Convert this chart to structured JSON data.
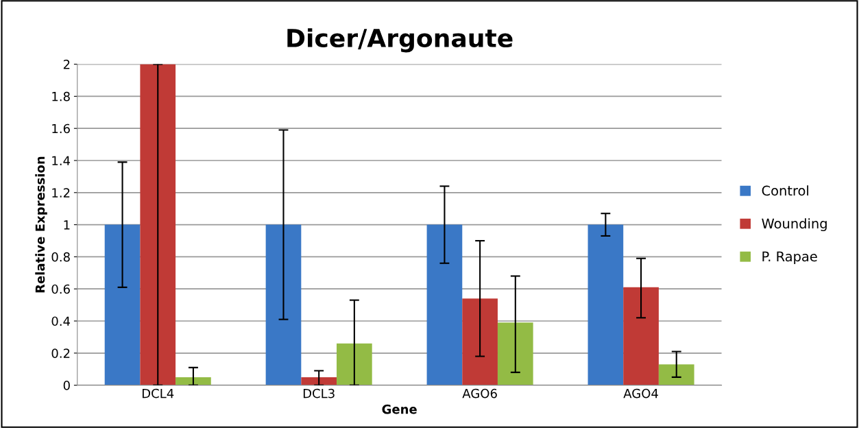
{
  "chart_data": {
    "type": "bar",
    "title": "Dicer/Argonaute",
    "xlabel": "Gene",
    "ylabel": "Relative Expression",
    "categories": [
      "DCL4",
      "DCL3",
      "AGO6",
      "AGO4"
    ],
    "series": [
      {
        "name": "Control",
        "color": "#3a78c6",
        "values": [
          1,
          1,
          1,
          1
        ],
        "errors": [
          [
            0.61,
            1.39
          ],
          [
            0.41,
            1.59
          ],
          [
            0.76,
            1.24
          ],
          [
            0.93,
            1.07
          ]
        ]
      },
      {
        "name": "Wounding",
        "color": "#c03a36",
        "values": [
          2,
          0.05,
          0.54,
          0.61
        ],
        "errors": [
          [
            0,
            2
          ],
          [
            0,
            0.09
          ],
          [
            0.18,
            0.9
          ],
          [
            0.42,
            0.79
          ]
        ]
      },
      {
        "name": "P. Rapae",
        "color": "#93bb45",
        "values": [
          0.05,
          0.26,
          0.39,
          0.13
        ],
        "errors": [
          [
            0,
            0.11
          ],
          [
            0,
            0.53
          ],
          [
            0.08,
            0.68
          ],
          [
            0.05,
            0.21
          ]
        ]
      }
    ],
    "ylim": [
      0,
      2
    ],
    "yticks": [
      0,
      0.2,
      0.4,
      0.6,
      0.8,
      1,
      1.2,
      1.4,
      1.6,
      1.8,
      2
    ],
    "grid": "y",
    "legend": "right"
  }
}
